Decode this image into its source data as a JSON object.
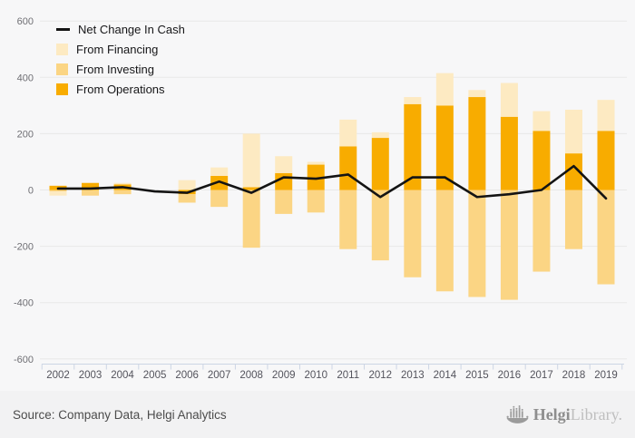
{
  "chart_data": {
    "type": "bar",
    "title": "",
    "xlabel": "",
    "ylabel": "",
    "categories": [
      "2002",
      "2003",
      "2004",
      "2005",
      "2006",
      "2007",
      "2008",
      "2009",
      "2010",
      "2011",
      "2012",
      "2013",
      "2014",
      "2015",
      "2016",
      "2017",
      "2018",
      "2019"
    ],
    "series": [
      {
        "name": "From Operations",
        "color": "#F8AC00",
        "values": [
          15,
          25,
          20,
          0,
          -15,
          50,
          10,
          60,
          90,
          155,
          185,
          305,
          300,
          330,
          260,
          210,
          130,
          210
        ]
      },
      {
        "name": "From Investing",
        "color": "#FBD584",
        "values": [
          -5,
          -20,
          -15,
          0,
          -30,
          -60,
          -205,
          -85,
          -80,
          -210,
          -250,
          -310,
          -360,
          -380,
          -390,
          -290,
          -210,
          -335
        ]
      },
      {
        "name": "From Financing",
        "color": "#FDEAC2",
        "values": [
          -15,
          0,
          5,
          0,
          35,
          30,
          190,
          60,
          10,
          95,
          20,
          25,
          115,
          25,
          120,
          70,
          155,
          110
        ]
      }
    ],
    "line_series": {
      "name": "Net Change In Cash",
      "color": "#141414",
      "values": [
        5,
        5,
        10,
        -5,
        -10,
        30,
        -10,
        45,
        40,
        55,
        -25,
        45,
        45,
        -25,
        -15,
        0,
        85,
        -30
      ]
    },
    "ylim": [
      -600,
      600
    ],
    "yticks": [
      600,
      400,
      200,
      0,
      -200,
      -400,
      -600
    ],
    "grid": true,
    "legend_position": "top-left"
  },
  "legend": {
    "items": [
      {
        "label": "Net Change In Cash",
        "type": "line"
      },
      {
        "label": "From Financing",
        "type": "box",
        "color": "#FDEAC2"
      },
      {
        "label": "From Investing",
        "type": "box",
        "color": "#FBD584"
      },
      {
        "label": "From Operations",
        "type": "box",
        "color": "#F8AC00"
      }
    ]
  },
  "footer": {
    "source": "Source: Company Data, Helgi Analytics",
    "logo_helgi": "Helgi",
    "logo_library": "Library.",
    "logo_icon": "ship-bar-chart-icon"
  },
  "colors": {
    "background": "#f7f7f8",
    "footer_background": "#f2f2f3",
    "gridline": "#e8e8e8",
    "axis": "#ccd5e4",
    "line": "#141414",
    "operations": "#F8AC00",
    "investing": "#FBD584",
    "financing": "#FDEAC2"
  }
}
